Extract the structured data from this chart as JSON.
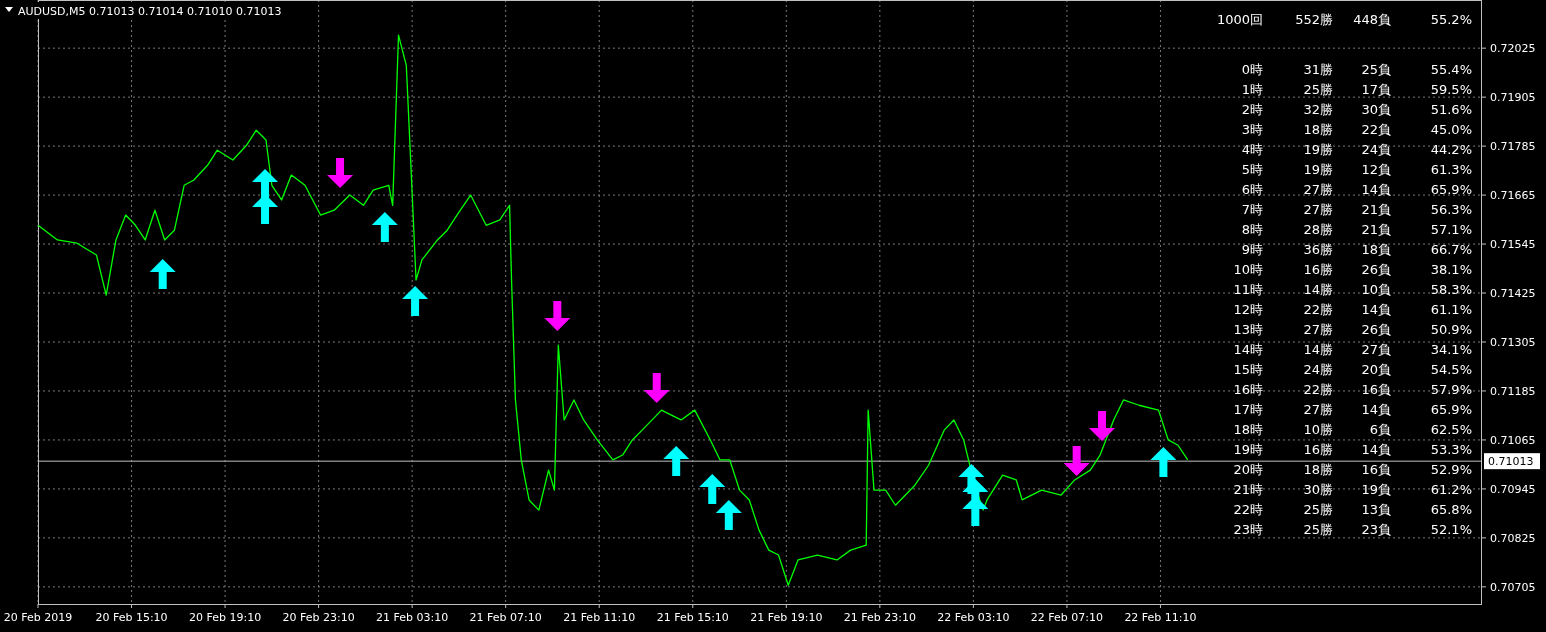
{
  "chart_data": {
    "type": "line",
    "title": "AUDUSD,M5  0.71013  0.71014  0.71010  0.71013",
    "x": [
      "2019-02-20T11:10",
      "2019-02-20T12:00",
      "2019-02-20T12:50",
      "2019-02-20T13:40",
      "2019-02-20T14:05",
      "2019-02-20T14:30",
      "2019-02-20T14:55",
      "2019-02-20T15:20",
      "2019-02-20T15:45",
      "2019-02-20T16:10",
      "2019-02-20T16:35",
      "2019-02-20T17:00",
      "2019-02-20T17:25",
      "2019-02-20T17:50",
      "2019-02-20T18:25",
      "2019-02-20T18:50",
      "2019-02-20T19:30",
      "2019-02-20T20:05",
      "2019-02-20T20:30",
      "2019-02-20T20:55",
      "2019-02-20T21:10",
      "2019-02-20T21:35",
      "2019-02-20T22:00",
      "2019-02-20T22:35",
      "2019-02-20T23:15",
      "2019-02-20T23:50",
      "2019-02-21T00:30",
      "2019-02-21T01:05",
      "2019-02-21T01:30",
      "2019-02-21T02:10",
      "2019-02-21T02:20",
      "2019-02-21T02:35",
      "2019-02-21T02:55",
      "2019-02-21T03:05",
      "2019-02-21T03:20",
      "2019-02-21T03:35",
      "2019-02-21T04:15",
      "2019-02-21T04:40",
      "2019-02-21T05:05",
      "2019-02-21T05:40",
      "2019-02-21T06:20",
      "2019-02-21T06:55",
      "2019-02-21T07:20",
      "2019-02-21T07:25",
      "2019-02-21T07:35",
      "2019-02-21T07:50",
      "2019-02-21T08:10",
      "2019-02-21T08:35",
      "2019-02-21T09:00",
      "2019-02-21T09:15",
      "2019-02-21T09:25",
      "2019-02-21T09:40",
      "2019-02-21T10:05",
      "2019-02-21T10:30",
      "2019-02-21T11:05",
      "2019-02-21T11:45",
      "2019-02-21T12:10",
      "2019-02-21T12:35",
      "2019-02-21T13:00",
      "2019-02-21T13:50",
      "2019-02-21T14:15",
      "2019-02-21T14:40",
      "2019-02-21T15:15",
      "2019-02-21T15:55",
      "2019-02-21T16:20",
      "2019-02-21T16:45",
      "2019-02-21T17:10",
      "2019-02-21T17:35",
      "2019-02-21T18:00",
      "2019-02-21T18:25",
      "2019-02-21T18:50",
      "2019-02-21T19:15",
      "2019-02-21T19:40",
      "2019-02-21T20:30",
      "2019-02-21T21:20",
      "2019-02-21T21:55",
      "2019-02-21T22:35",
      "2019-02-21T22:40",
      "2019-02-21T22:55",
      "2019-02-21T23:25",
      "2019-02-21T23:50",
      "2019-02-22T00:40",
      "2019-02-22T01:15",
      "2019-02-22T01:55",
      "2019-02-22T02:20",
      "2019-02-22T02:45",
      "2019-02-22T03:10",
      "2019-02-22T03:35",
      "2019-02-22T03:45",
      "2019-02-22T04:25",
      "2019-02-22T05:00",
      "2019-02-22T05:15",
      "2019-02-22T06:05",
      "2019-02-22T06:55",
      "2019-02-22T07:30",
      "2019-02-22T08:10",
      "2019-02-22T08:35",
      "2019-02-22T09:10",
      "2019-02-22T09:35",
      "2019-02-22T10:15",
      "2019-02-22T11:05",
      "2019-02-22T11:30",
      "2019-02-22T11:55",
      "2019-02-22T12:20"
    ],
    "series": [
      {
        "color": "#00ff00",
        "values": [
          0.71591,
          0.71555,
          0.71547,
          0.71518,
          0.7142,
          0.71555,
          0.71616,
          0.71591,
          0.71555,
          0.71628,
          0.71555,
          0.71579,
          0.71689,
          0.71702,
          0.71738,
          0.71775,
          0.71751,
          0.71787,
          0.71824,
          0.718,
          0.71689,
          0.71653,
          0.71714,
          0.71689,
          0.71616,
          0.71628,
          0.71665,
          0.7164,
          0.71677,
          0.71689,
          0.7164,
          0.72057,
          0.71983,
          0.71775,
          0.71457,
          0.71506,
          0.71555,
          0.71579,
          0.71616,
          0.71665,
          0.71591,
          0.71604,
          0.7164,
          0.71457,
          0.71163,
          0.71016,
          0.70918,
          0.70893,
          0.70991,
          0.70942,
          0.71297,
          0.71114,
          0.71163,
          0.71114,
          0.71065,
          0.71016,
          0.71028,
          0.71065,
          0.71089,
          0.71138,
          0.71126,
          0.71114,
          0.71138,
          0.71065,
          0.71016,
          0.71016,
          0.70942,
          0.70918,
          0.70844,
          0.70795,
          0.70783,
          0.70709,
          0.70771,
          0.70783,
          0.70771,
          0.70795,
          0.70807,
          0.71138,
          0.70942,
          0.70942,
          0.70905,
          0.70954,
          0.71003,
          0.71089,
          0.71114,
          0.71065,
          0.70967,
          0.70893,
          0.70918,
          0.70979,
          0.70967,
          0.70918,
          0.70942,
          0.7093,
          0.70967,
          0.70991,
          0.71028,
          0.71114,
          0.71163,
          0.7115,
          0.71138,
          0.71065,
          0.71052,
          0.71016
        ]
      }
    ],
    "xlim": [
      "2019-02-20T11:10",
      "2019-02-23T00:55"
    ],
    "xticks": [
      {
        "value": "2019-02-20T11:10",
        "label": "20 Feb 2019"
      },
      {
        "value": "2019-02-20T15:10",
        "label": "20 Feb 15:10"
      },
      {
        "value": "2019-02-20T19:10",
        "label": "20 Feb 19:10"
      },
      {
        "value": "2019-02-20T23:10",
        "label": "20 Feb 23:10"
      },
      {
        "value": "2019-02-21T03:10",
        "label": "21 Feb 03:10"
      },
      {
        "value": "2019-02-21T07:10",
        "label": "21 Feb 07:10"
      },
      {
        "value": "2019-02-21T11:10",
        "label": "21 Feb 11:10"
      },
      {
        "value": "2019-02-21T15:10",
        "label": "21 Feb 15:10"
      },
      {
        "value": "2019-02-21T19:10",
        "label": "21 Feb 19:10"
      },
      {
        "value": "2019-02-21T23:10",
        "label": "21 Feb 23:10"
      },
      {
        "value": "2019-02-22T03:10",
        "label": "22 Feb 03:10"
      },
      {
        "value": "2019-02-22T07:10",
        "label": "22 Feb 07:10"
      },
      {
        "value": "2019-02-22T11:10",
        "label": "22 Feb 11:10"
      }
    ],
    "ylim": [
      0.70663,
      0.72143
    ],
    "yticks": [
      0.72025,
      0.71905,
      0.71785,
      0.71665,
      0.71545,
      0.71425,
      0.71305,
      0.71185,
      0.71065,
      0.70945,
      0.70825,
      0.70705
    ],
    "grid": true,
    "marker": "none",
    "line_style": "solid",
    "ref_lines": [
      {
        "axis": "y",
        "value": 0.71013,
        "label": "0.71013",
        "color": "#c0c0c0"
      }
    ],
    "annotations": [
      "1000回 552勝 448負 55.2%",
      "0時 31勝 25負 55.4%",
      "1時 25勝 17負 59.5%",
      "2時 32勝 30負 51.6%",
      "3時 18勝 22負 45.0%",
      "4時 19勝 24負 44.2%",
      "5時 19勝 12負 61.3%",
      "6時 27勝 14負 65.9%",
      "7時 27勝 21負 56.3%",
      "8時 28勝 21負 57.1%",
      "9時 36勝 18負 66.7%",
      "10時 16勝 26負 38.1%",
      "11時 14勝 10負 58.3%",
      "12時 22勝 14負 61.1%",
      "13時 27勝 26負 50.9%",
      "14時 14勝 27負 34.1%",
      "15時 24勝 20負 54.5%",
      "16時 22勝 16負 57.9%",
      "17時 27勝 14負 65.9%",
      "18時 10勝 6負 62.5%",
      "19時 16勝 14負 53.3%",
      "20時 18勝 16負 52.9%",
      "21時 30勝 19負 61.2%",
      "22時 25勝 13負 65.8%",
      "23時 25勝 23負 52.1%"
    ]
  }
}
